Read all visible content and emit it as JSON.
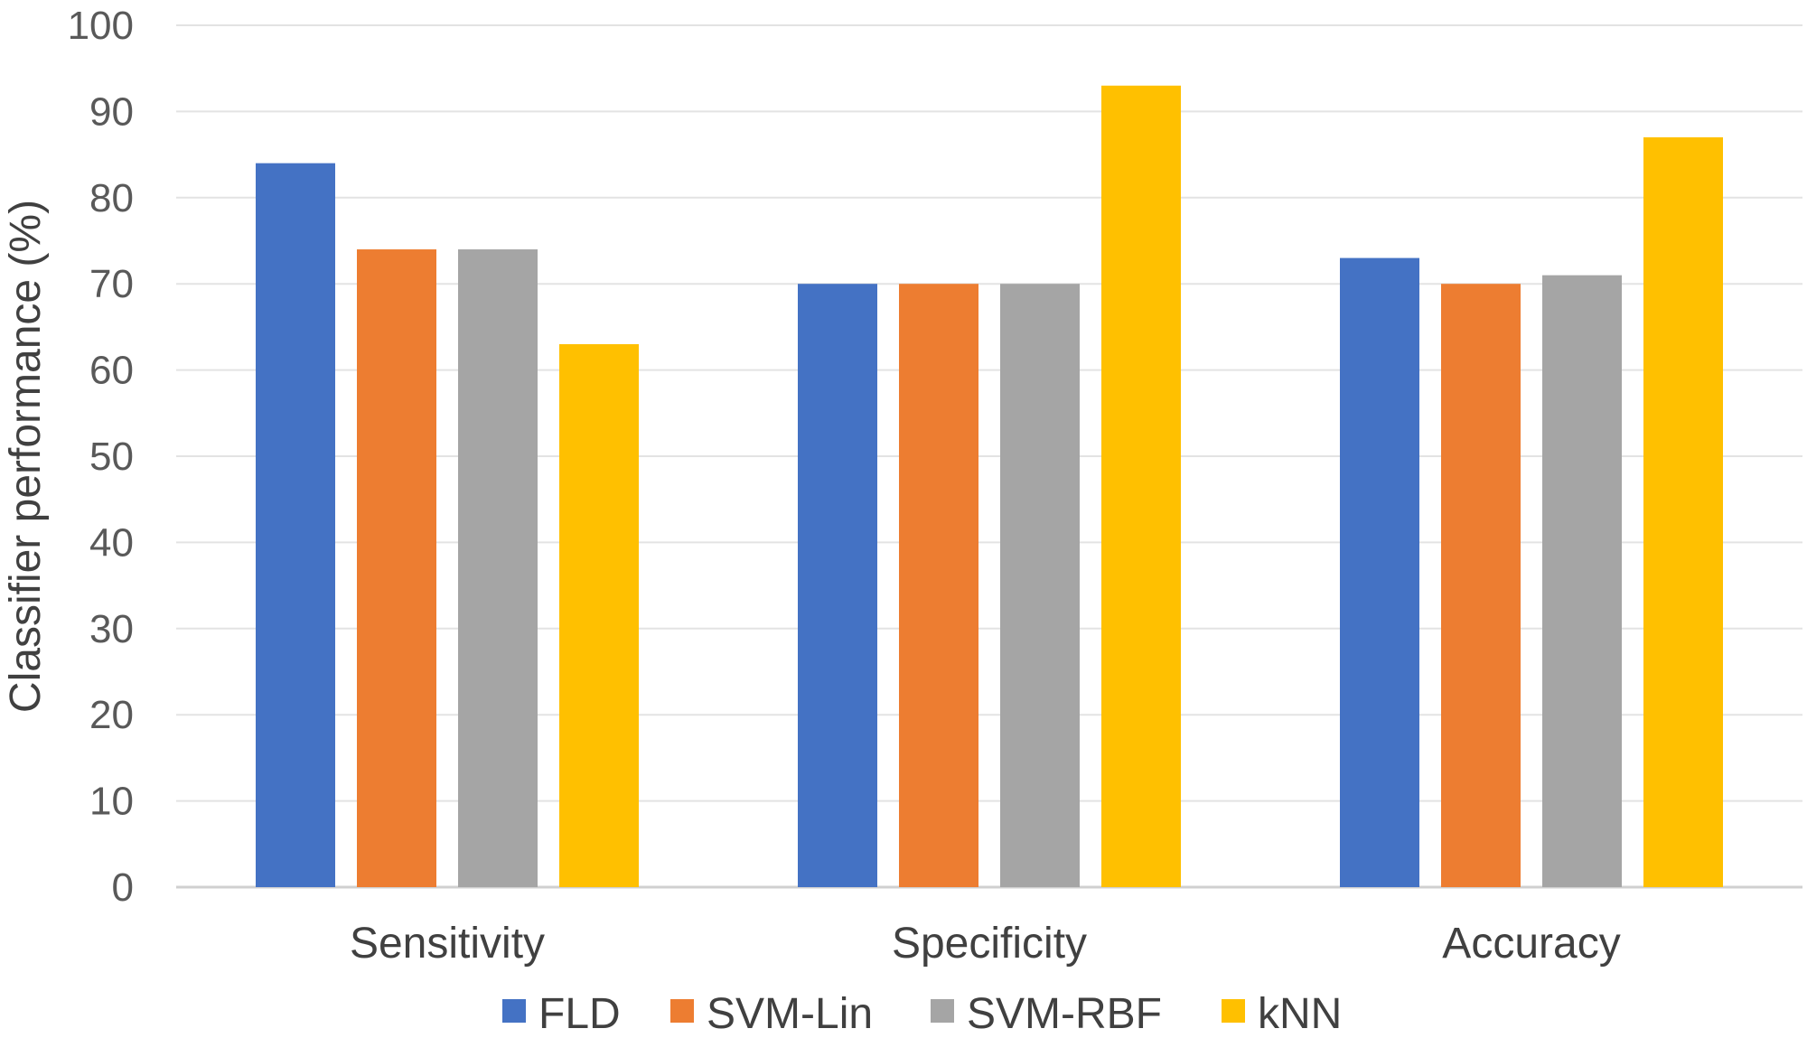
{
  "chart_data": {
    "type": "bar",
    "title": "",
    "xlabel": "",
    "ylabel": "Classifier performance (%)",
    "ylim": [
      0,
      100
    ],
    "yticks": [
      0,
      10,
      20,
      30,
      40,
      50,
      60,
      70,
      80,
      90,
      100
    ],
    "grid": true,
    "legend": "bottom",
    "categories": [
      "Sensitivity",
      "Specificity",
      "Accuracy"
    ],
    "series": [
      {
        "name": "FLD",
        "color": "#4472C4",
        "values": [
          84,
          70,
          73
        ]
      },
      {
        "name": "SVM-Lin",
        "color": "#ED7D31",
        "values": [
          74,
          70,
          70
        ]
      },
      {
        "name": "SVM-RBF",
        "color": "#A5A5A5",
        "values": [
          74,
          70,
          71
        ]
      },
      {
        "name": "kNN",
        "color": "#FFC000",
        "values": [
          63,
          93,
          87
        ]
      }
    ]
  }
}
